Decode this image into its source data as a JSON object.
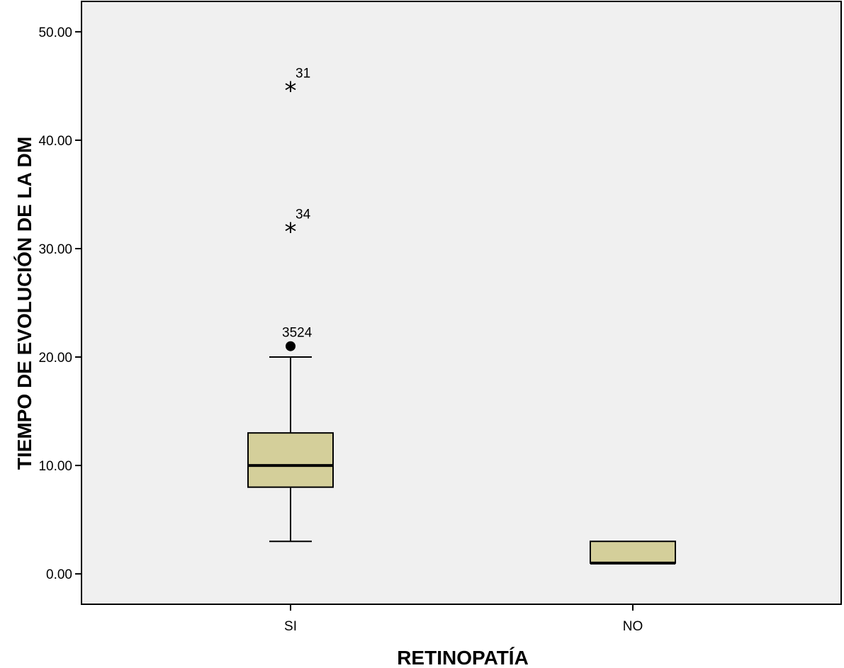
{
  "chart_data": {
    "type": "boxplot",
    "xlabel": "RETINOPATÍA",
    "ylabel": "TIEMPO DE EVOLUCIÓN DE LA DM",
    "ylim": [
      -2.8,
      52.8
    ],
    "yticks": [
      0,
      10,
      20,
      30,
      40,
      50
    ],
    "ytick_labels": [
      "0.00",
      "10.00",
      "20.00",
      "30.00",
      "40.00",
      "50.00"
    ],
    "categories": [
      "SI",
      "NO"
    ],
    "grid": false,
    "colors": {
      "plot_bg": "#f0f0f0",
      "box_fill": "#d4cf9a",
      "stroke": "#000000"
    },
    "boxes": [
      {
        "category": "SI",
        "whisker_low": 3,
        "q1": 8,
        "median": 10,
        "q3": 13,
        "whisker_high": 20,
        "outliers": [
          {
            "value": 21,
            "label": "3524",
            "marker": "circle"
          },
          {
            "value": 32,
            "label": "34",
            "marker": "star"
          },
          {
            "value": 45,
            "label": "31",
            "marker": "star"
          }
        ]
      },
      {
        "category": "NO",
        "whisker_low": 1,
        "q1": 1,
        "median": 1,
        "q3": 3,
        "whisker_high": 3,
        "outliers": []
      }
    ]
  }
}
